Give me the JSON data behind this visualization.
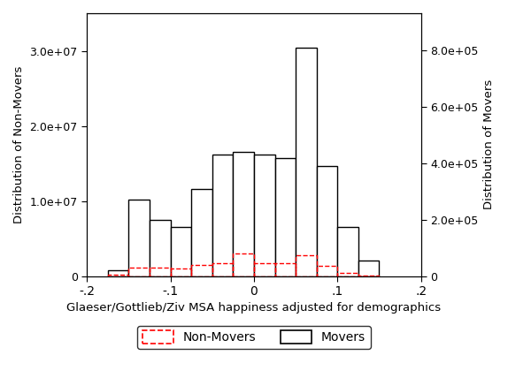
{
  "xlabel": "Glaeser/Gottlieb/Ziv MSA happiness adjusted for demographics",
  "ylabel_left": "Distribution of Non-Movers",
  "ylabel_right": "Distribution of Movers",
  "xlim": [
    -0.2,
    0.2
  ],
  "ylim_left": [
    0,
    35000000.0
  ],
  "ylim_right": [
    0,
    933300.0
  ],
  "bin_centers": [
    -0.1625,
    -0.1375,
    -0.1125,
    -0.0875,
    -0.0625,
    -0.0375,
    -0.0125,
    0.0125,
    0.0375,
    0.0625,
    0.0875,
    0.1125,
    0.1375
  ],
  "movers_right": [
    20000,
    270000,
    200000,
    175000,
    310000,
    430000,
    440000,
    430000,
    420000,
    810000,
    390000,
    175000,
    55000
  ],
  "nonmovers_left": [
    200000,
    1150000,
    1100000,
    950000,
    1450000,
    1750000,
    2950000,
    1700000,
    1650000,
    2800000,
    1350000,
    400000,
    100000
  ],
  "bar_width": 0.025,
  "xticks": [
    -0.2,
    -0.1,
    0.0,
    0.1,
    0.2
  ],
  "xtick_labels": [
    "-.2",
    "-.1",
    "0",
    ".1",
    ".2"
  ],
  "yticks_left": [
    0,
    10000000.0,
    20000000.0,
    30000000.0
  ],
  "ytick_labels_left": [
    "0",
    "1.0e+07",
    "2.0e+07",
    "3.0e+07"
  ],
  "yticks_right": [
    0,
    200000.0,
    400000.0,
    600000.0,
    800000.0
  ],
  "ytick_labels_right": [
    "0",
    "2.0e+05",
    "4.0e+05",
    "6.0e+05",
    "8.0e+05"
  ]
}
